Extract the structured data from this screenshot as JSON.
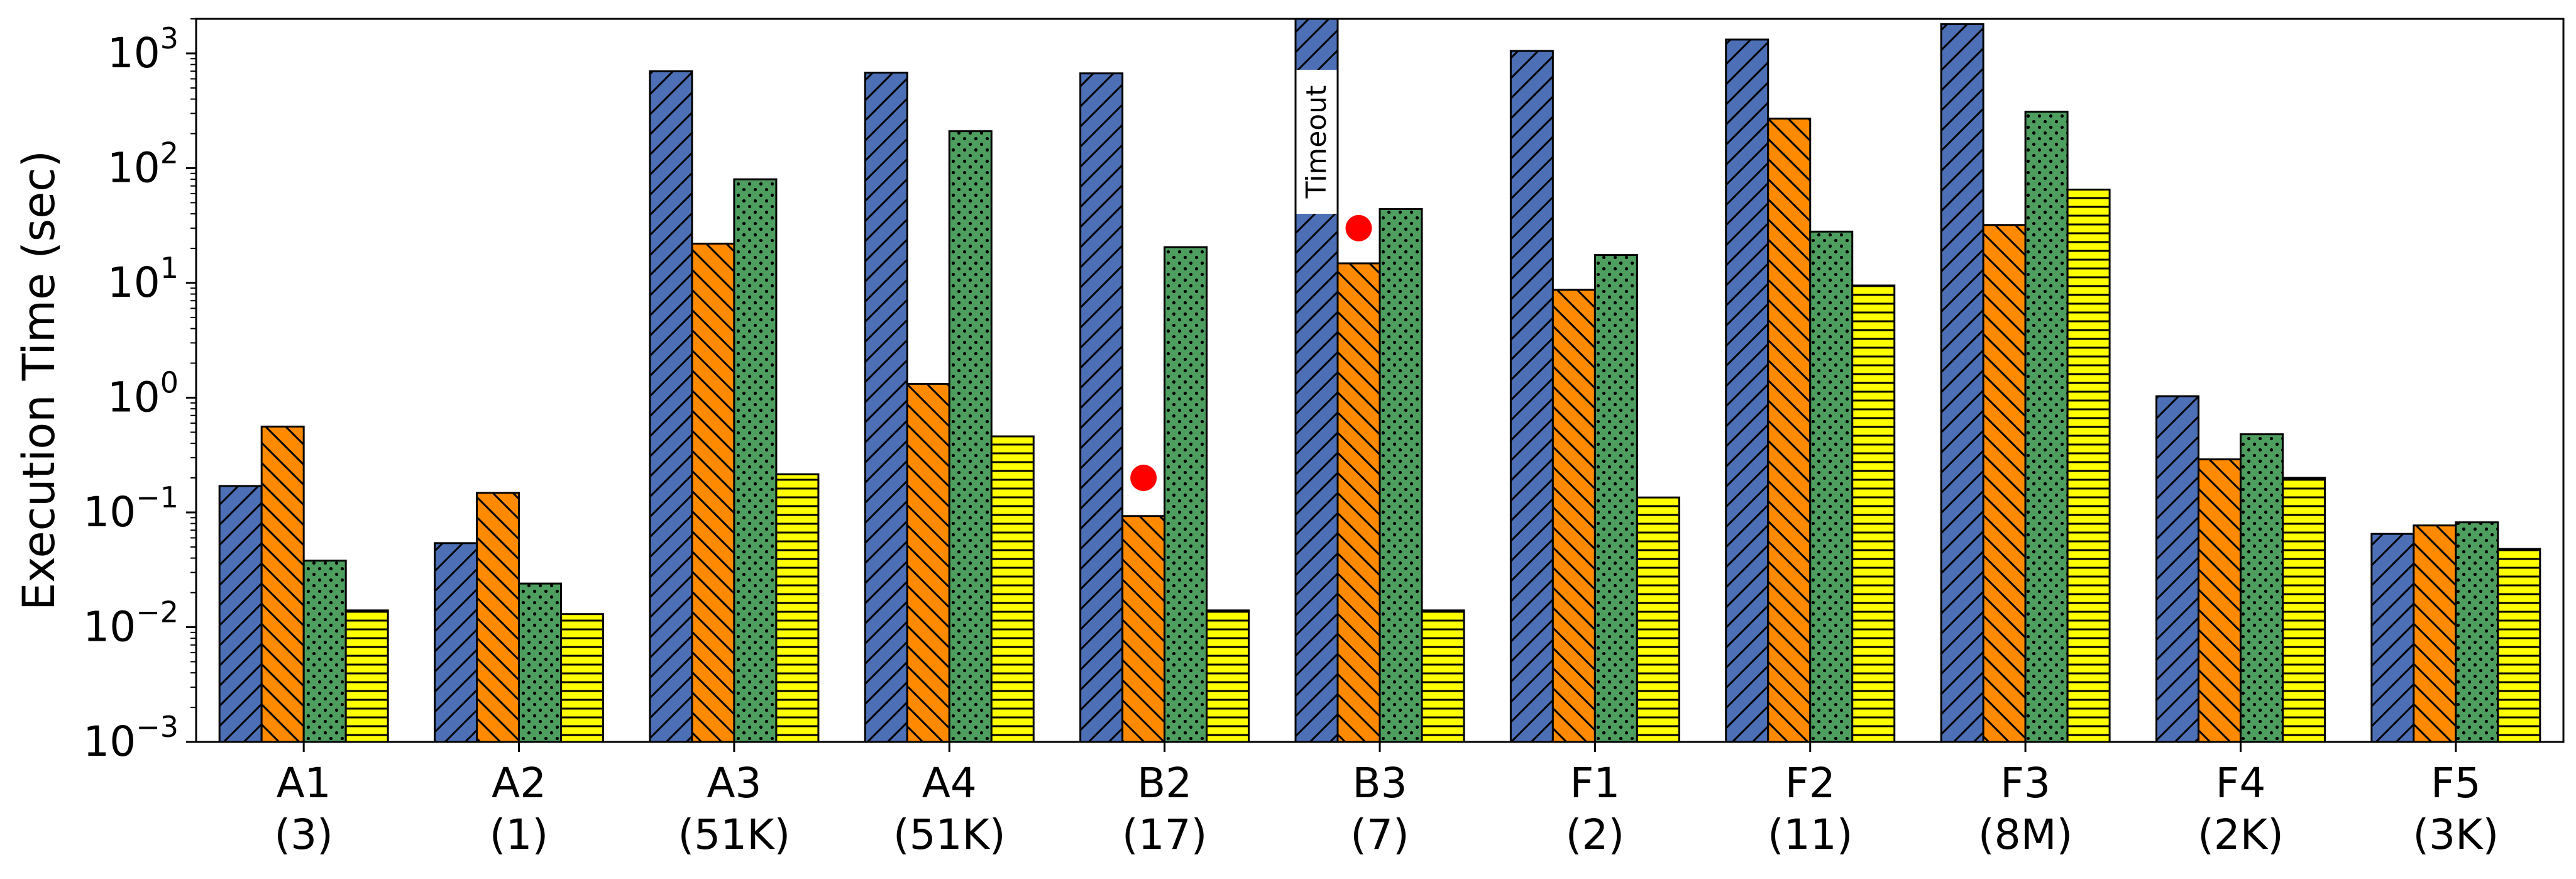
{
  "chart_data": {
    "type": "bar",
    "ylabel": "Execution Time (sec)",
    "yscale": "log",
    "ylim": [
      0.001,
      2000
    ],
    "yticks": [
      {
        "value": 0.001,
        "base": "10",
        "exp": "−3"
      },
      {
        "value": 0.01,
        "base": "10",
        "exp": "−2"
      },
      {
        "value": 0.1,
        "base": "10",
        "exp": "−1"
      },
      {
        "value": 1,
        "base": "10",
        "exp": "0"
      },
      {
        "value": 10,
        "base": "10",
        "exp": "1"
      },
      {
        "value": 100,
        "base": "10",
        "exp": "2"
      },
      {
        "value": 1000,
        "base": "10",
        "exp": "3"
      }
    ],
    "categories": [
      "A1",
      "A2",
      "A3",
      "A4",
      "B2",
      "B3",
      "F1",
      "F2",
      "F3",
      "F4",
      "F5"
    ],
    "category_sublabels": [
      "(3)",
      "(1)",
      "(51K)",
      "(51K)",
      "(17)",
      "(7)",
      "(2)",
      "(11)",
      "(8M)",
      "(2K)",
      "(3K)"
    ],
    "series": [
      {
        "color": "#4c6fb5",
        "pattern": "diag-forward",
        "values": [
          0.17,
          0.054,
          700,
          680,
          670,
          2000,
          1050,
          1320,
          1800,
          1.03,
          0.065
        ]
      },
      {
        "color": "#ff8a00",
        "pattern": "diag-backward",
        "values": [
          0.56,
          0.148,
          22,
          1.32,
          0.093,
          14.8,
          8.7,
          270,
          32,
          0.29,
          0.077
        ]
      },
      {
        "color": "#4e9e5f",
        "pattern": "dots",
        "values": [
          0.038,
          0.024,
          80,
          210,
          20.5,
          44,
          17.5,
          28,
          310,
          0.48,
          0.082
        ]
      },
      {
        "color": "#ffff00",
        "pattern": "horizontal",
        "values": [
          0.014,
          0.013,
          0.215,
          0.46,
          0.014,
          0.014,
          0.135,
          9.5,
          65,
          0.2,
          0.048
        ]
      }
    ],
    "markers": [
      {
        "category": "B2",
        "series_index": 1,
        "value": 0.2,
        "color": "#ff0000"
      },
      {
        "category": "B3",
        "series_index": 1,
        "value": 30,
        "color": "#ff0000"
      }
    ],
    "annotations": [
      {
        "category": "B3",
        "series_index": 0,
        "text": "Timeout",
        "value_low": 40,
        "value_high": 720
      }
    ],
    "grid": false,
    "legend": "none"
  }
}
